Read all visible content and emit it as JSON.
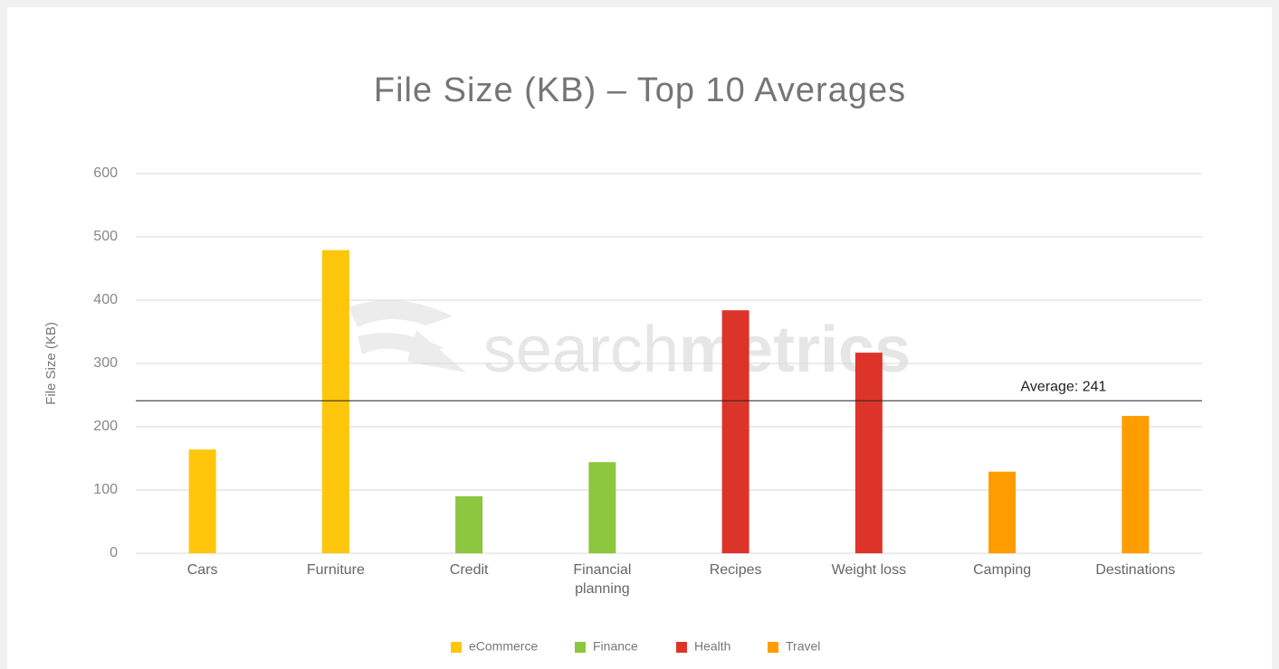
{
  "chart_data": {
    "type": "bar",
    "title": "File Size (KB) – Top 10 Averages",
    "y_label": "File Size (KB)",
    "watermark": [
      "search",
      "metrics"
    ],
    "categories": [
      "Cars",
      "Furniture",
      "Credit",
      "Financial planning",
      "Recipes",
      "Weight loss",
      "Camping",
      "Destinations"
    ],
    "series": [
      {
        "name": "eCommerce",
        "color": "#ffc60b",
        "values": [
          164,
          479,
          null,
          null,
          null,
          null,
          null,
          null
        ]
      },
      {
        "name": "Finance",
        "color": "#8dc63f",
        "values": [
          null,
          null,
          90,
          144,
          null,
          null,
          null,
          null
        ]
      },
      {
        "name": "Health",
        "color": "#dd3429",
        "values": [
          null,
          null,
          null,
          null,
          384,
          317,
          null,
          null
        ]
      },
      {
        "name": "Travel",
        "color": "#ff9c00",
        "values": [
          null,
          null,
          null,
          null,
          null,
          null,
          129,
          217
        ]
      }
    ],
    "ylim": [
      0,
      600
    ],
    "yticks": [
      0,
      100,
      200,
      300,
      400,
      500,
      600
    ],
    "grid": true,
    "legend": "bottom",
    "annotation": {
      "text": "Average: 241",
      "value": 241
    }
  }
}
